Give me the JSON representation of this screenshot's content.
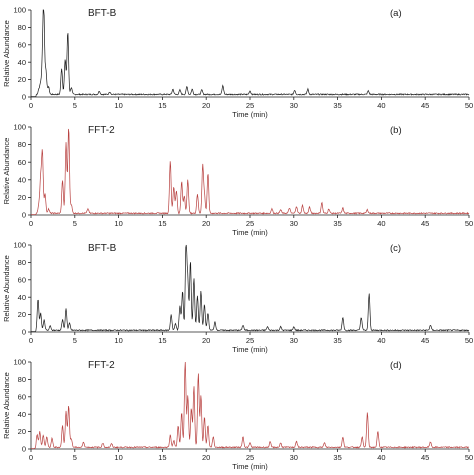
{
  "chart_data": [
    {
      "type": "line",
      "sample_label": "BFT-B",
      "panel_label": "(a)",
      "xlabel": "Time (min)",
      "ylabel": "Relative Abundance",
      "xlim": [
        0,
        50
      ],
      "ylim": [
        0,
        100
      ],
      "x_ticks": [
        0,
        5,
        10,
        15,
        20,
        25,
        30,
        35,
        40,
        45,
        50
      ],
      "y_ticks": [
        0,
        20,
        40,
        60,
        80,
        100
      ],
      "color": "#1a1a1a",
      "baseline": 3,
      "peaks": [
        {
          "x": 0.9,
          "y": 6
        },
        {
          "x": 1.1,
          "y": 12
        },
        {
          "x": 1.3,
          "y": 30
        },
        {
          "x": 1.45,
          "y": 100
        },
        {
          "x": 1.7,
          "y": 28
        },
        {
          "x": 2.0,
          "y": 9
        },
        {
          "x": 3.5,
          "y": 30
        },
        {
          "x": 3.9,
          "y": 40
        },
        {
          "x": 4.2,
          "y": 72
        },
        {
          "x": 4.6,
          "y": 8
        },
        {
          "x": 7.8,
          "y": 4
        },
        {
          "x": 9.0,
          "y": 3
        },
        {
          "x": 16.2,
          "y": 6
        },
        {
          "x": 17.0,
          "y": 5
        },
        {
          "x": 17.8,
          "y": 9
        },
        {
          "x": 18.4,
          "y": 6
        },
        {
          "x": 19.5,
          "y": 5
        },
        {
          "x": 21.9,
          "y": 10
        },
        {
          "x": 25.0,
          "y": 4
        },
        {
          "x": 30.1,
          "y": 5
        },
        {
          "x": 31.6,
          "y": 6
        },
        {
          "x": 38.5,
          "y": 4
        }
      ]
    },
    {
      "type": "line",
      "sample_label": "FFT-2",
      "panel_label": "(b)",
      "xlabel": "Time (min)",
      "ylabel": "Relative Abundance",
      "xlim": [
        0,
        50
      ],
      "ylim": [
        0,
        100
      ],
      "x_ticks": [
        0,
        5,
        10,
        15,
        20,
        25,
        30,
        35,
        40,
        45,
        50
      ],
      "y_ticks": [
        0,
        20,
        40,
        60,
        80,
        100
      ],
      "color": "#b8403f",
      "baseline": 2,
      "peaks": [
        {
          "x": 0.9,
          "y": 10
        },
        {
          "x": 1.1,
          "y": 38
        },
        {
          "x": 1.3,
          "y": 70
        },
        {
          "x": 1.6,
          "y": 22
        },
        {
          "x": 2.0,
          "y": 5
        },
        {
          "x": 3.6,
          "y": 38
        },
        {
          "x": 4.0,
          "y": 80
        },
        {
          "x": 4.3,
          "y": 98
        },
        {
          "x": 4.6,
          "y": 10
        },
        {
          "x": 6.5,
          "y": 5
        },
        {
          "x": 15.9,
          "y": 60
        },
        {
          "x": 16.3,
          "y": 30
        },
        {
          "x": 16.6,
          "y": 26
        },
        {
          "x": 17.2,
          "y": 36
        },
        {
          "x": 17.5,
          "y": 20
        },
        {
          "x": 17.9,
          "y": 38
        },
        {
          "x": 19.0,
          "y": 22
        },
        {
          "x": 19.6,
          "y": 54
        },
        {
          "x": 19.8,
          "y": 20
        },
        {
          "x": 20.2,
          "y": 45
        },
        {
          "x": 27.5,
          "y": 5
        },
        {
          "x": 28.5,
          "y": 4
        },
        {
          "x": 29.5,
          "y": 6
        },
        {
          "x": 30.3,
          "y": 8
        },
        {
          "x": 31.0,
          "y": 9
        },
        {
          "x": 31.8,
          "y": 7
        },
        {
          "x": 33.2,
          "y": 12
        },
        {
          "x": 34.0,
          "y": 5
        },
        {
          "x": 35.6,
          "y": 6
        },
        {
          "x": 38.4,
          "y": 4
        }
      ]
    },
    {
      "type": "line",
      "sample_label": "BFT-B",
      "panel_label": "(c)",
      "xlabel": "Time (min)",
      "ylabel": "Relative Abundance",
      "xlim": [
        0,
        50
      ],
      "ylim": [
        0,
        100
      ],
      "x_ticks": [
        0,
        5,
        10,
        15,
        20,
        25,
        30,
        35,
        40,
        45,
        50
      ],
      "y_ticks": [
        0,
        20,
        40,
        60,
        80,
        100
      ],
      "color": "#1a1a1a",
      "baseline": 2,
      "peaks": [
        {
          "x": 0.8,
          "y": 36
        },
        {
          "x": 1.1,
          "y": 20
        },
        {
          "x": 1.5,
          "y": 12
        },
        {
          "x": 2.2,
          "y": 5
        },
        {
          "x": 3.6,
          "y": 12
        },
        {
          "x": 4.0,
          "y": 25
        },
        {
          "x": 4.4,
          "y": 8
        },
        {
          "x": 16.0,
          "y": 18
        },
        {
          "x": 16.5,
          "y": 8
        },
        {
          "x": 17.0,
          "y": 28
        },
        {
          "x": 17.3,
          "y": 45
        },
        {
          "x": 17.7,
          "y": 100
        },
        {
          "x": 17.9,
          "y": 55
        },
        {
          "x": 18.2,
          "y": 80
        },
        {
          "x": 18.6,
          "y": 60
        },
        {
          "x": 19.0,
          "y": 40
        },
        {
          "x": 19.4,
          "y": 45
        },
        {
          "x": 19.8,
          "y": 30
        },
        {
          "x": 20.2,
          "y": 20
        },
        {
          "x": 21.0,
          "y": 10
        },
        {
          "x": 24.2,
          "y": 6
        },
        {
          "x": 27.0,
          "y": 4
        },
        {
          "x": 28.5,
          "y": 4
        },
        {
          "x": 30.0,
          "y": 4
        },
        {
          "x": 35.6,
          "y": 15
        },
        {
          "x": 37.7,
          "y": 15
        },
        {
          "x": 38.6,
          "y": 42
        },
        {
          "x": 45.6,
          "y": 6
        }
      ]
    },
    {
      "type": "line",
      "sample_label": "FFT-2",
      "panel_label": "(d)",
      "xlabel": "Time (min)",
      "ylabel": "Relative Abundance",
      "xlim": [
        0,
        50
      ],
      "ylim": [
        0,
        100
      ],
      "x_ticks": [
        0,
        5,
        10,
        15,
        20,
        25,
        30,
        35,
        40,
        45,
        50
      ],
      "y_ticks": [
        0,
        20,
        40,
        60,
        80,
        100
      ],
      "color": "#b8403f",
      "baseline": 2,
      "peaks": [
        {
          "x": 0.7,
          "y": 15
        },
        {
          "x": 1.0,
          "y": 18
        },
        {
          "x": 1.4,
          "y": 14
        },
        {
          "x": 1.8,
          "y": 12
        },
        {
          "x": 2.4,
          "y": 10
        },
        {
          "x": 3.6,
          "y": 25
        },
        {
          "x": 4.0,
          "y": 42
        },
        {
          "x": 4.3,
          "y": 48
        },
        {
          "x": 4.6,
          "y": 10
        },
        {
          "x": 6.0,
          "y": 6
        },
        {
          "x": 8.2,
          "y": 5
        },
        {
          "x": 9.2,
          "y": 4
        },
        {
          "x": 15.9,
          "y": 14
        },
        {
          "x": 16.3,
          "y": 8
        },
        {
          "x": 16.8,
          "y": 25
        },
        {
          "x": 17.2,
          "y": 40
        },
        {
          "x": 17.6,
          "y": 100
        },
        {
          "x": 17.9,
          "y": 60
        },
        {
          "x": 18.3,
          "y": 45
        },
        {
          "x": 18.6,
          "y": 70
        },
        {
          "x": 19.1,
          "y": 85
        },
        {
          "x": 19.4,
          "y": 60
        },
        {
          "x": 19.8,
          "y": 35
        },
        {
          "x": 20.2,
          "y": 25
        },
        {
          "x": 20.8,
          "y": 12
        },
        {
          "x": 24.2,
          "y": 12
        },
        {
          "x": 25.0,
          "y": 5
        },
        {
          "x": 27.3,
          "y": 6
        },
        {
          "x": 28.5,
          "y": 5
        },
        {
          "x": 30.3,
          "y": 7
        },
        {
          "x": 33.5,
          "y": 5
        },
        {
          "x": 35.6,
          "y": 12
        },
        {
          "x": 37.8,
          "y": 12
        },
        {
          "x": 38.4,
          "y": 40
        },
        {
          "x": 39.6,
          "y": 18
        },
        {
          "x": 45.6,
          "y": 6
        }
      ]
    }
  ]
}
